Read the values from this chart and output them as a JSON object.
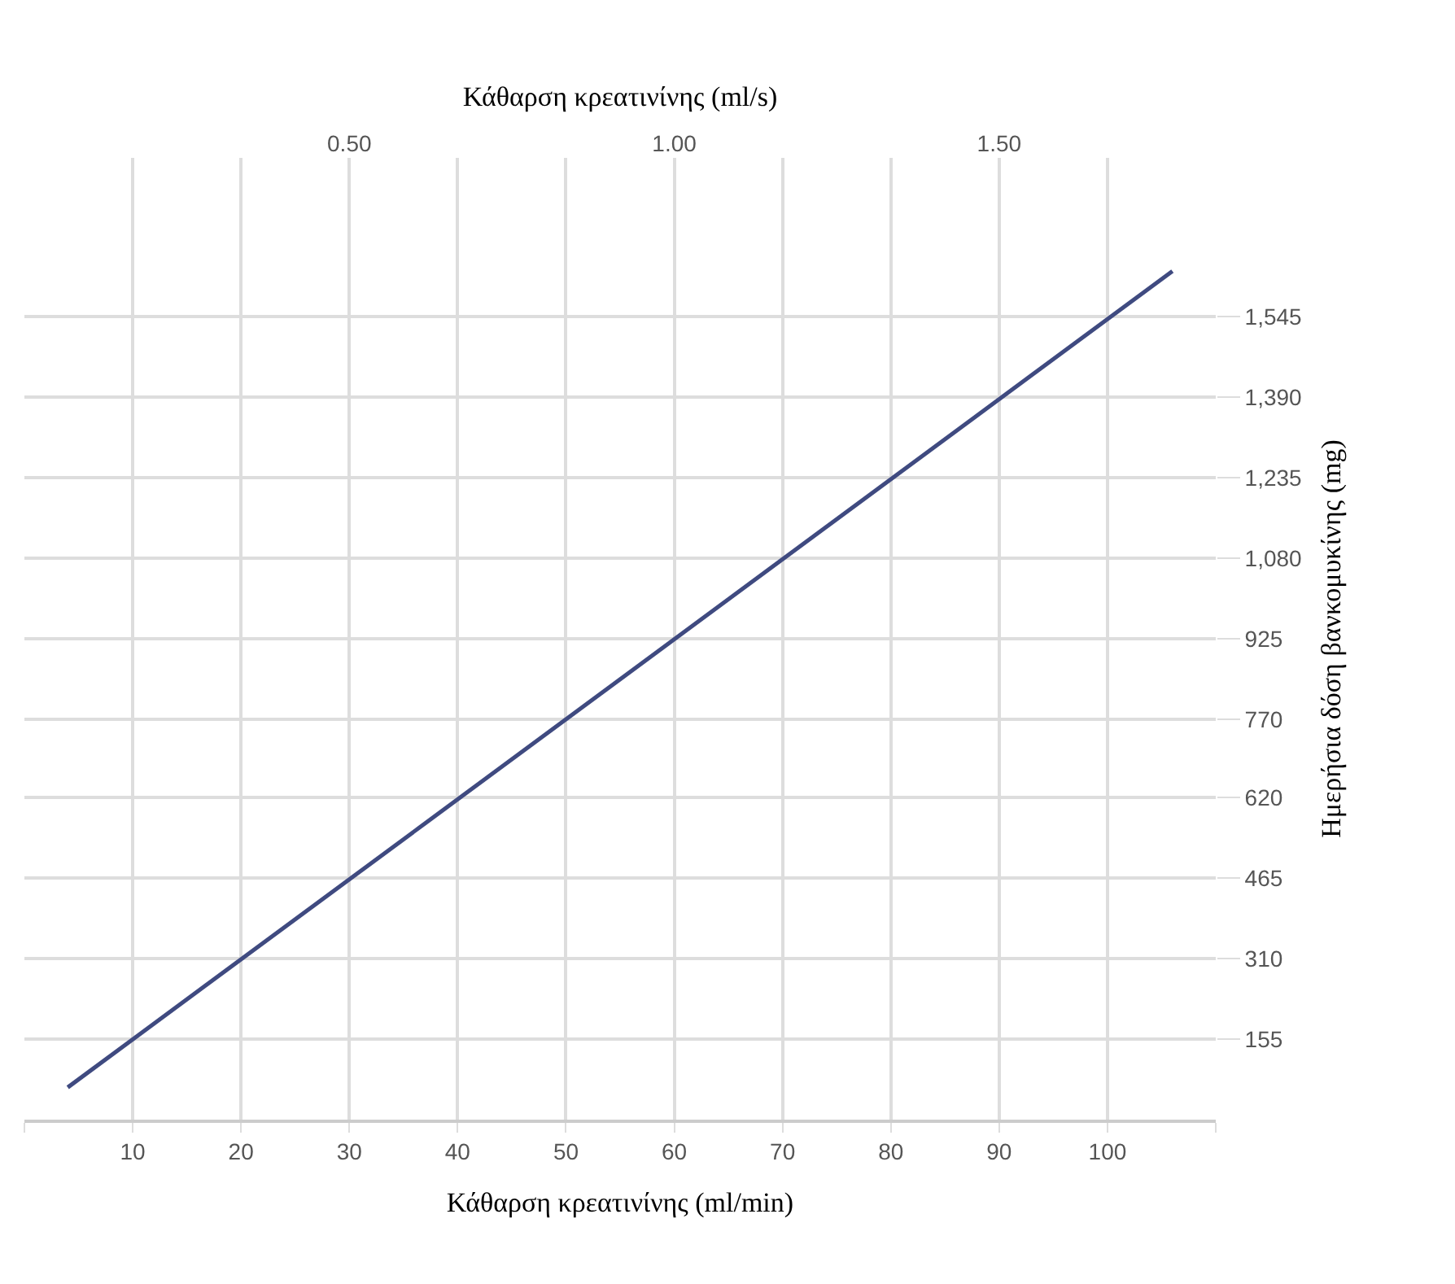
{
  "chart_data": {
    "type": "line",
    "xlabel": "Κάθαρση κρεατινίνης (ml/min)",
    "x2label": "Κάθαρση κρεατινίνης (ml/s)",
    "ylabel": "Ημερήσια δόση βανκομυκίνης (mg)",
    "x": [
      4,
      106
    ],
    "series": [
      {
        "color": "#3f4a80",
        "values": [
          62,
          1632
        ]
      }
    ],
    "xlim": [
      0,
      110
    ],
    "xticks": [
      {
        "value": 0,
        "label": null
      },
      10,
      20,
      30,
      40,
      50,
      60,
      70,
      80,
      90,
      100,
      {
        "value": 110,
        "label": null
      }
    ],
    "x2lim": [
      0,
      1.8333
    ],
    "x2ticks": [
      {
        "value": 0.5,
        "label": "0.50"
      },
      {
        "value": 1.0,
        "label": "1.00"
      },
      {
        "value": 1.5,
        "label": "1.50"
      }
    ],
    "ylim": [
      0,
      1850
    ],
    "yticks": [
      155,
      310,
      465,
      620,
      770,
      925,
      {
        "value": 1080,
        "label": "1,080"
      },
      {
        "value": 1235,
        "label": "1,235"
      },
      {
        "value": 1390,
        "label": "1,390"
      },
      {
        "value": 1545,
        "label": "1,545"
      }
    ],
    "grid": true,
    "marker": "none",
    "line_style": "solid"
  }
}
